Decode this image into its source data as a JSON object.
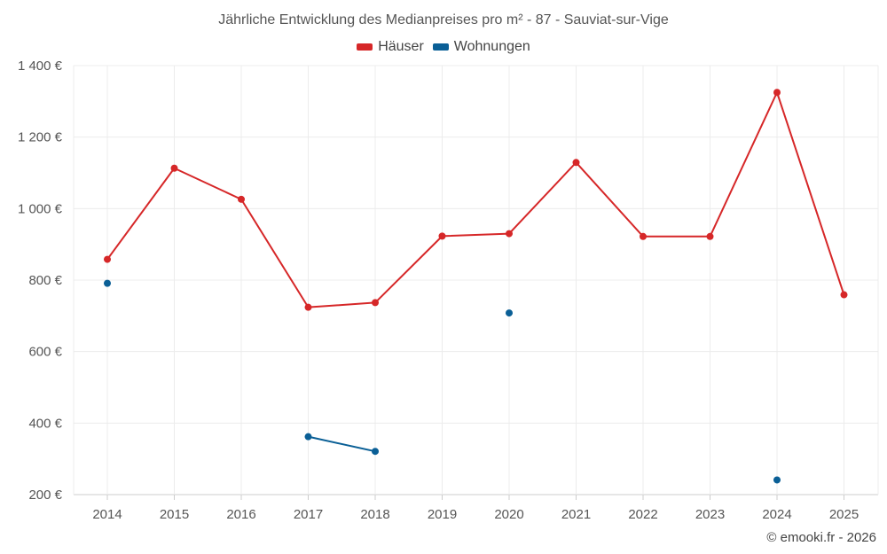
{
  "chart_data": {
    "type": "line",
    "title": "Jährliche Entwicklung des Medianpreises pro m² - 87 - Sauviat-sur-Vige",
    "categories": [
      "2014",
      "2015",
      "2016",
      "2017",
      "2018",
      "2019",
      "2020",
      "2021",
      "2022",
      "2023",
      "2024",
      "2025"
    ],
    "series": [
      {
        "name": "Häuser",
        "color": "#d62728",
        "values": [
          858,
          1113,
          1026,
          724,
          737,
          923,
          930,
          1129,
          922,
          922,
          1325,
          759
        ]
      },
      {
        "name": "Wohnungen",
        "color": "#0a5f96",
        "values": [
          791,
          null,
          null,
          362,
          321,
          null,
          708,
          null,
          null,
          null,
          241,
          null
        ]
      }
    ],
    "ylim": [
      200,
      1400
    ],
    "yticks": [
      200,
      400,
      600,
      800,
      1000,
      1200,
      1400
    ],
    "ytick_labels": [
      "200 €",
      "400 €",
      "600 €",
      "800 €",
      "1 000 €",
      "1 200 €",
      "1 400 €"
    ],
    "grid": true,
    "legend_position": "top-center"
  },
  "footer": "© emooki.fr - 2026"
}
